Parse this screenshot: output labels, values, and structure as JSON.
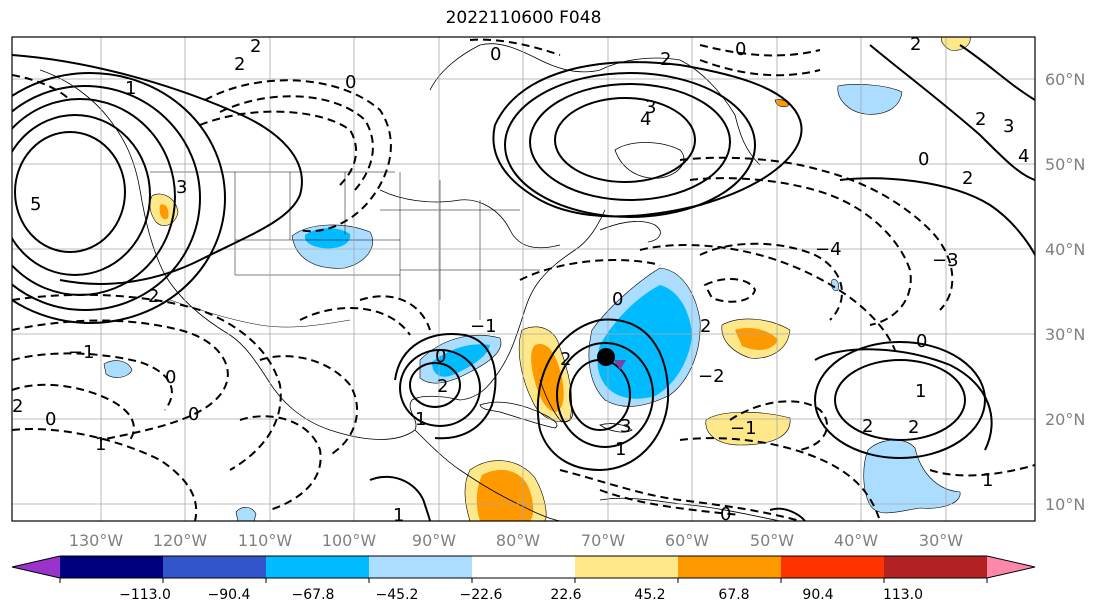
{
  "title": "2022110600 F048",
  "lat_labels": [
    "60°N",
    "50°N",
    "40°N",
    "30°N",
    "20°N",
    "10°N"
  ],
  "lon_labels": [
    "130°W",
    "120°W",
    "110°W",
    "100°W",
    "90°W",
    "80°W",
    "70°W",
    "60°W",
    "50°W",
    "40°W",
    "30°W"
  ],
  "colorbar": {
    "colors": [
      "#9933cc",
      "#00007f",
      "#3355cc",
      "#00bbff",
      "#aaddff",
      "#ffffff",
      "#ffe88a",
      "#ff9900",
      "#ff3300",
      "#b22222",
      "#ff88aa"
    ],
    "ticks": [
      "−113.0",
      "−90.4",
      "−67.8",
      "−45.2",
      "−22.6",
      "22.6",
      "45.2",
      "67.8",
      "90.4",
      "113.0"
    ]
  },
  "contour_labels": [
    "0",
    "1",
    "2",
    "3",
    "4",
    "5",
    "−1",
    "−2",
    "−3",
    "−4"
  ],
  "center_marker": {
    "lon": "70°W",
    "lat": "27°N"
  }
}
